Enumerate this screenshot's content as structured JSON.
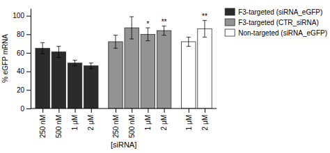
{
  "chart_data": {
    "type": "bar",
    "xlabel": "[siRNA]",
    "ylabel": "% eGFP mRNA",
    "categories": [
      "250 nM",
      "500 nM",
      "1 μM",
      "2 μM",
      "250 nM",
      "500 nM",
      "1 μM",
      "2 μM",
      "1 μM",
      "2 μM"
    ],
    "series": [
      {
        "name": "F3-targeted (siRNA_eGFP)",
        "color": "#2b2b2b",
        "values": [
          65,
          61,
          49,
          46,
          null,
          null,
          null,
          null,
          null,
          null
        ],
        "errors": [
          6,
          6,
          3,
          3,
          null,
          null,
          null,
          null,
          null,
          null
        ]
      },
      {
        "name": "F3-targeted (CTR_siRNA)",
        "color": "#939393",
        "values": [
          null,
          null,
          null,
          null,
          72,
          87,
          80,
          84,
          null,
          null
        ],
        "errors": [
          null,
          null,
          null,
          null,
          7,
          12,
          7,
          5,
          null,
          null
        ],
        "sig_labels": [
          null,
          null,
          null,
          null,
          null,
          null,
          "*",
          "**",
          null,
          null
        ]
      },
      {
        "name": "Non-targeted (siRNA_eGFP)",
        "color": "#ffffff",
        "values": [
          null,
          null,
          null,
          null,
          null,
          null,
          null,
          null,
          72,
          86
        ],
        "errors": [
          null,
          null,
          null,
          null,
          null,
          null,
          null,
          null,
          5,
          9
        ],
        "sig_labels": [
          null,
          null,
          null,
          null,
          null,
          null,
          null,
          null,
          null,
          "**"
        ]
      }
    ],
    "ylim": [
      0,
      108
    ],
    "yticks": [
      0,
      20,
      40,
      60,
      80,
      100
    ],
    "grid": false,
    "legend": "right"
  }
}
